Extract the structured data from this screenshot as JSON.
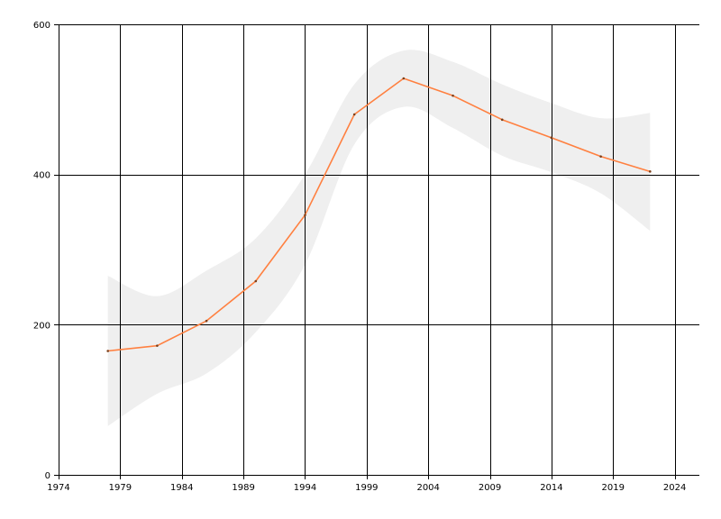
{
  "chart_data": {
    "type": "line",
    "title": "",
    "xlabel": "",
    "ylabel": "",
    "xlim": [
      1974,
      2026
    ],
    "ylim": [
      0,
      600
    ],
    "grid": true,
    "legend": "none",
    "x_ticks": [
      1974,
      1979,
      1984,
      1989,
      1994,
      1999,
      2004,
      2009,
      2014,
      2019,
      2024
    ],
    "y_ticks": [
      0,
      200,
      400,
      600
    ],
    "colors": {
      "line": "#ff8040",
      "band": "#efefef",
      "point": "#7a3f1a",
      "grid": "#000000"
    },
    "series": [
      {
        "x": [
          1978,
          1982,
          1986,
          1990,
          1994,
          1998,
          2002,
          2006,
          2010,
          2014,
          2018,
          2022
        ],
        "values": [
          165,
          172,
          205,
          258,
          346,
          480,
          528,
          505,
          473,
          449,
          424,
          404
        ],
        "band_upper": [
          265,
          238,
          272,
          315,
          400,
          520,
          565,
          550,
          520,
          495,
          475,
          482
        ],
        "band_lower": [
          65,
          108,
          135,
          190,
          280,
          440,
          490,
          462,
          425,
          403,
          375,
          325
        ]
      }
    ]
  }
}
